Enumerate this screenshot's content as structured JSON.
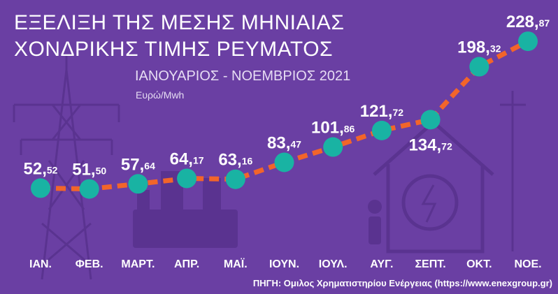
{
  "chart_data": {
    "type": "line",
    "title": [
      "ΕΞΕΛΙΞΗ ΤΗΣ ΜΕΣΗΣ ΜΗΝΙΑΙΑΣ",
      "ΧΟΝΔΡΙΚΗΣ ΤΙΜΗΣ ΡΕΥΜΑΤΟΣ"
    ],
    "subtitle": "ΙΑΝΟΥΑΡΙΟΣ - ΝΟΕΜΒΡΙΟΣ 2021",
    "ylabel": "Ευρώ/Mwh",
    "categories": [
      "ΙΑΝ.",
      "ΦΕΒ.",
      "ΜΑΡΤ.",
      "ΑΠΡ.",
      "ΜΑΪ.",
      "ΙΟΥΝ.",
      "ΙΟΥΛ.",
      "ΑΥΓ.",
      "ΣΕΠΤ.",
      "ΟΚΤ.",
      "ΝΟΕ."
    ],
    "values": [
      52.52,
      51.5,
      57.64,
      64.17,
      63.16,
      83.47,
      101.86,
      121.72,
      134.72,
      198.32,
      228.87
    ],
    "value_labels": [
      {
        "int": "52,",
        "dec": "52"
      },
      {
        "int": "51,",
        "dec": "50"
      },
      {
        "int": "57,",
        "dec": "64"
      },
      {
        "int": "64,",
        "dec": "17"
      },
      {
        "int": "63,",
        "dec": "16"
      },
      {
        "int": "83,",
        "dec": "47"
      },
      {
        "int": "101,",
        "dec": "86"
      },
      {
        "int": "121,",
        "dec": "72"
      },
      {
        "int": "134,",
        "dec": "72"
      },
      {
        "int": "198,",
        "dec": "32"
      },
      {
        "int": "228,",
        "dec": "87"
      }
    ],
    "label_placement": [
      "above",
      "above",
      "above",
      "above",
      "above",
      "above",
      "above",
      "above",
      "below",
      "above",
      "above"
    ],
    "ylim": [
      0,
      260
    ],
    "grid": false,
    "colors": {
      "line": "#f2652a",
      "point": "#19b3a3",
      "background": "#6a3fa3",
      "text": "#ffffff"
    }
  },
  "source": "ΠΗΓΗ: Ομιλος Χρηματιστηρίου Ενέργειας (https://www.enexgroup.gr)"
}
